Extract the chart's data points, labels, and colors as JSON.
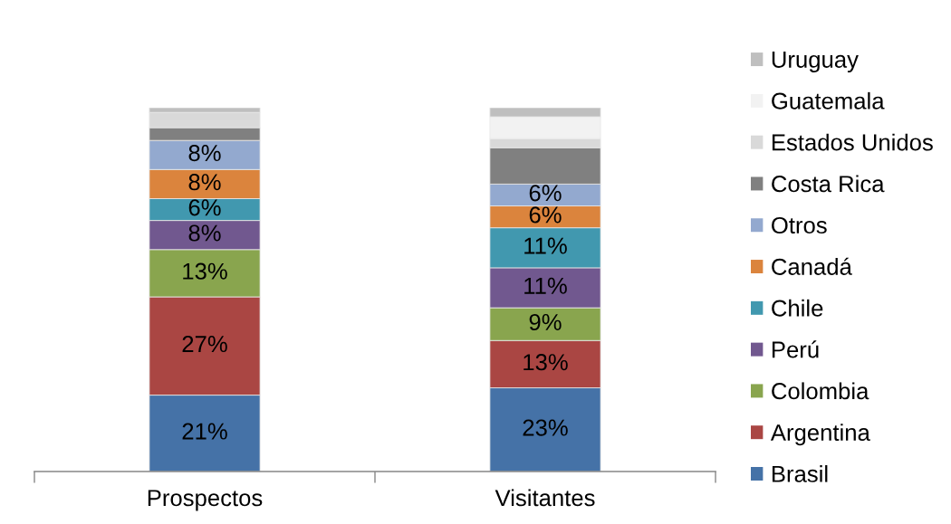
{
  "chart_data": {
    "type": "bar",
    "stacked": true,
    "legend": "right",
    "grid": false,
    "categories": [
      "Prospectos",
      "Visitantes"
    ],
    "series": [
      {
        "name": "Brasil",
        "color": "#4572a7",
        "values": [
          21,
          23
        ],
        "value_labels": [
          "21%",
          "23%"
        ]
      },
      {
        "name": "Argentina",
        "color": "#aa4643",
        "values": [
          27,
          13
        ],
        "value_labels": [
          "27%",
          "13%"
        ]
      },
      {
        "name": "Colombia",
        "color": "#89a54e",
        "values": [
          13,
          9
        ],
        "value_labels": [
          "13%",
          "9%"
        ]
      },
      {
        "name": "Perú",
        "color": "#71588f",
        "values": [
          8,
          11
        ],
        "value_labels": [
          "8%",
          "11%"
        ]
      },
      {
        "name": "Chile",
        "color": "#4198af",
        "values": [
          6,
          11
        ],
        "value_labels": [
          "6%",
          "11%"
        ]
      },
      {
        "name": "Canadá",
        "color": "#db843d",
        "values": [
          8,
          6
        ],
        "value_labels": [
          "8%",
          "6%"
        ]
      },
      {
        "name": "Otros",
        "color": "#93a9cf",
        "values": [
          8,
          6
        ],
        "value_labels": [
          "8%",
          "6%"
        ]
      },
      {
        "name": "Costa Rica",
        "color": "#808080",
        "values": [
          3.5,
          10
        ],
        "value_labels": [
          null,
          null
        ]
      },
      {
        "name": "Estados Unidos",
        "color": "#d9d9d9",
        "values": [
          4.2,
          2.5
        ],
        "value_labels": [
          null,
          null
        ]
      },
      {
        "name": "Guatemala",
        "color": "#f2f2f2",
        "values": [
          null,
          6
        ],
        "value_labels": [
          null,
          null
        ]
      },
      {
        "name": "Uruguay",
        "color": "#bfbfbf",
        "values": [
          1.3,
          2.5
        ],
        "value_labels": [
          null,
          null
        ]
      }
    ]
  }
}
